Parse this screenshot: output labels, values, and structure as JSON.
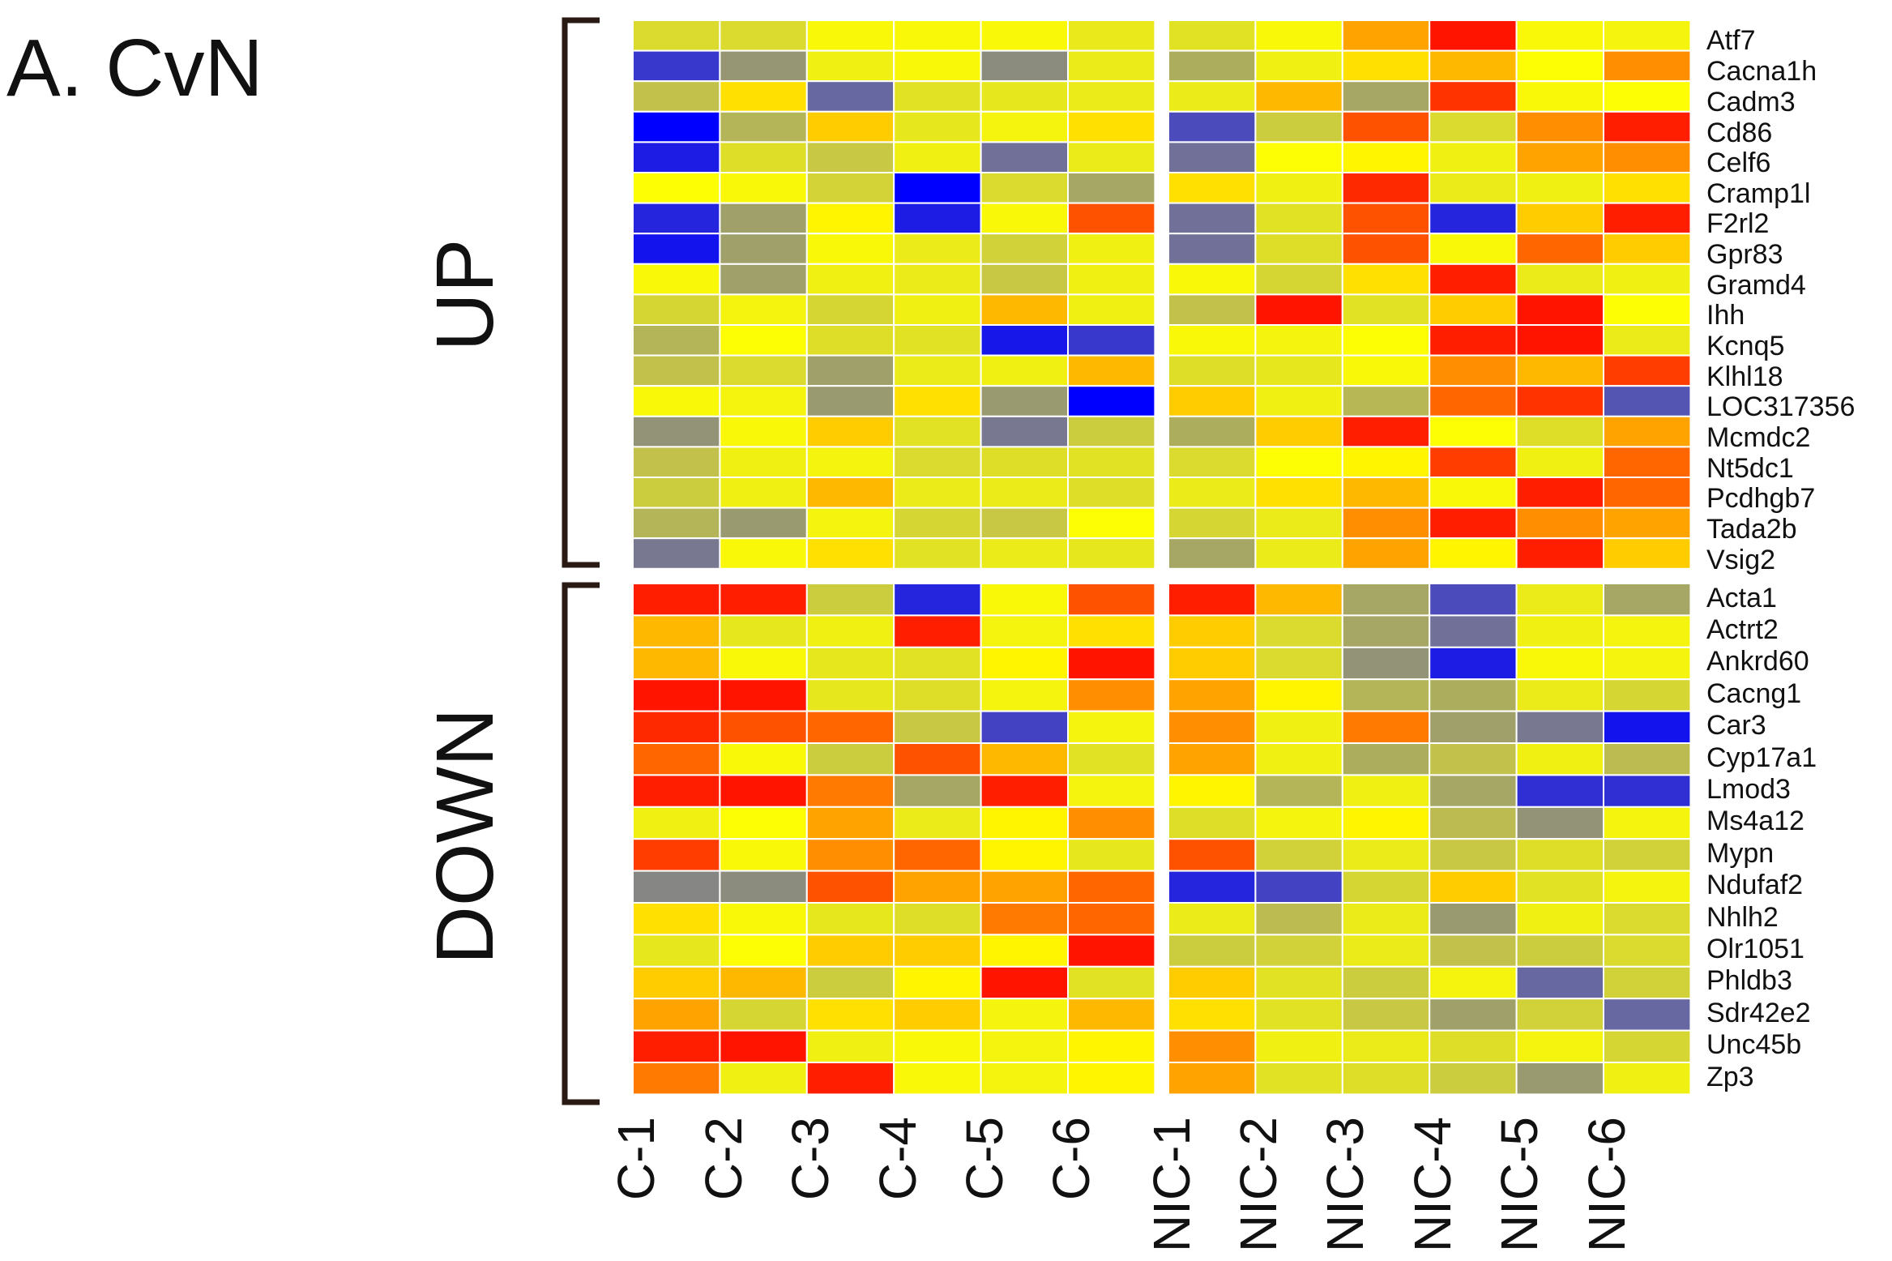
{
  "panel_label": "A. CvN",
  "chart_data": {
    "type": "heatmap",
    "title": "A. CvN",
    "color_scale": {
      "low": "#0000ff",
      "mid_low": "#757594",
      "mid": "#c8c845",
      "mid_high": "#ffff00",
      "high": "#ff0000",
      "range": [
        0,
        1
      ]
    },
    "groups": [
      {
        "name": "UP",
        "genes": [
          "Atf7",
          "Cacna1h",
          "Cadm3",
          "Cd86",
          "Celf6",
          "Cramp1l",
          "F2rl2",
          "Gpr83",
          "Gramd4",
          "Ihh",
          "Kcnq5",
          "Klhl18",
          "LOC317356",
          "Mcmdc2",
          "Nt5dc1",
          "Pcdhgb7",
          "Tada2b",
          "Vsig2"
        ]
      },
      {
        "name": "DOWN",
        "genes": [
          "Acta1",
          "Actrt2",
          "Ankrd60",
          "Cacng1",
          "Car3",
          "Cyp17a1",
          "Lmod3",
          "Ms4a12",
          "Mypn",
          "Ndufaf2",
          "Nhlh2",
          "Olr1051",
          "Phldb3",
          "Sdr42e2",
          "Unc45b",
          "Zp3"
        ]
      }
    ],
    "sample_groups": [
      {
        "name": "C",
        "samples": [
          "C-1",
          "C-2",
          "C-3",
          "C-4",
          "C-5",
          "C-6"
        ]
      },
      {
        "name": "NIC",
        "samples": [
          "NIC-1",
          "NIC-2",
          "NIC-3",
          "NIC-4",
          "NIC-5",
          "NIC-6"
        ]
      }
    ],
    "values": [
      [
        0.58,
        0.58,
        0.72,
        0.72,
        0.72,
        0.65,
        0.62,
        0.72,
        0.84,
        0.98,
        0.72,
        0.7
      ],
      [
        0.12,
        0.35,
        0.68,
        0.72,
        0.32,
        0.66,
        0.42,
        0.68,
        0.78,
        0.82,
        0.74,
        0.86
      ],
      [
        0.48,
        0.78,
        0.22,
        0.62,
        0.64,
        0.66,
        0.66,
        0.82,
        0.4,
        0.95,
        0.72,
        0.74
      ],
      [
        0.0,
        0.44,
        0.8,
        0.64,
        0.7,
        0.78,
        0.16,
        0.52,
        0.92,
        0.58,
        0.86,
        0.97
      ],
      [
        0.06,
        0.6,
        0.5,
        0.68,
        0.24,
        0.66,
        0.24,
        0.74,
        0.76,
        0.68,
        0.84,
        0.86
      ],
      [
        0.74,
        0.72,
        0.55,
        0.0,
        0.58,
        0.4,
        0.78,
        0.68,
        0.96,
        0.66,
        0.68,
        0.78
      ],
      [
        0.08,
        0.38,
        0.76,
        0.06,
        0.72,
        0.92,
        0.24,
        0.62,
        0.92,
        0.08,
        0.8,
        0.97
      ],
      [
        0.04,
        0.38,
        0.72,
        0.66,
        0.54,
        0.68,
        0.24,
        0.6,
        0.92,
        0.72,
        0.9,
        0.8
      ],
      [
        0.72,
        0.38,
        0.68,
        0.66,
        0.5,
        0.68,
        0.72,
        0.56,
        0.78,
        0.97,
        0.66,
        0.68
      ],
      [
        0.56,
        0.7,
        0.56,
        0.68,
        0.82,
        0.68,
        0.48,
        0.98,
        0.62,
        0.8,
        0.98,
        0.74
      ],
      [
        0.44,
        0.74,
        0.6,
        0.62,
        0.05,
        0.12,
        0.72,
        0.7,
        0.74,
        0.97,
        0.98,
        0.66
      ],
      [
        0.48,
        0.58,
        0.38,
        0.66,
        0.68,
        0.82,
        0.6,
        0.64,
        0.72,
        0.86,
        0.82,
        0.94
      ],
      [
        0.72,
        0.7,
        0.36,
        0.78,
        0.36,
        0.0,
        0.8,
        0.68,
        0.45,
        0.9,
        0.95,
        0.18
      ],
      [
        0.34,
        0.72,
        0.8,
        0.62,
        0.26,
        0.52,
        0.42,
        0.8,
        0.97,
        0.74,
        0.6,
        0.84
      ],
      [
        0.48,
        0.68,
        0.7,
        0.58,
        0.6,
        0.62,
        0.58,
        0.74,
        0.76,
        0.94,
        0.68,
        0.9
      ],
      [
        0.52,
        0.68,
        0.82,
        0.66,
        0.66,
        0.6,
        0.66,
        0.78,
        0.82,
        0.72,
        0.97,
        0.9
      ],
      [
        0.44,
        0.36,
        0.7,
        0.56,
        0.5,
        0.74,
        0.56,
        0.66,
        0.86,
        0.97,
        0.86,
        0.84
      ],
      [
        0.26,
        0.72,
        0.78,
        0.62,
        0.66,
        0.64,
        0.4,
        0.66,
        0.84,
        0.76,
        0.97,
        0.8
      ],
      [
        0.97,
        0.97,
        0.52,
        0.08,
        0.72,
        0.92,
        0.97,
        0.82,
        0.4,
        0.16,
        0.66,
        0.4
      ],
      [
        0.82,
        0.64,
        0.68,
        0.97,
        0.7,
        0.78,
        0.8,
        0.58,
        0.4,
        0.24,
        0.68,
        0.7
      ],
      [
        0.82,
        0.72,
        0.64,
        0.62,
        0.76,
        0.98,
        0.8,
        0.58,
        0.34,
        0.06,
        0.72,
        0.7
      ],
      [
        0.98,
        0.98,
        0.64,
        0.6,
        0.7,
        0.86,
        0.84,
        0.76,
        0.44,
        0.42,
        0.66,
        0.56
      ],
      [
        0.96,
        0.92,
        0.9,
        0.5,
        0.14,
        0.7,
        0.86,
        0.68,
        0.88,
        0.38,
        0.26,
        0.04
      ],
      [
        0.9,
        0.72,
        0.52,
        0.92,
        0.82,
        0.62,
        0.84,
        0.68,
        0.42,
        0.48,
        0.68,
        0.46
      ],
      [
        0.97,
        0.98,
        0.88,
        0.4,
        0.97,
        0.7,
        0.76,
        0.44,
        0.68,
        0.4,
        0.1,
        0.1
      ],
      [
        0.68,
        0.74,
        0.84,
        0.66,
        0.76,
        0.86,
        0.6,
        0.7,
        0.76,
        0.46,
        0.34,
        0.7
      ],
      [
        0.94,
        0.72,
        0.86,
        0.9,
        0.76,
        0.64,
        0.92,
        0.54,
        0.66,
        0.5,
        0.6,
        0.54
      ],
      [
        0.3,
        0.32,
        0.92,
        0.84,
        0.84,
        0.9,
        0.08,
        0.14,
        0.56,
        0.8,
        0.62,
        0.7
      ],
      [
        0.78,
        0.72,
        0.64,
        0.6,
        0.88,
        0.9,
        0.66,
        0.46,
        0.66,
        0.36,
        0.68,
        0.58
      ],
      [
        0.64,
        0.74,
        0.8,
        0.8,
        0.76,
        0.98,
        0.52,
        0.54,
        0.66,
        0.48,
        0.52,
        0.58
      ],
      [
        0.8,
        0.82,
        0.52,
        0.76,
        0.98,
        0.62,
        0.8,
        0.62,
        0.52,
        0.7,
        0.22,
        0.54
      ],
      [
        0.84,
        0.56,
        0.78,
        0.8,
        0.7,
        0.82,
        0.78,
        0.62,
        0.5,
        0.38,
        0.54,
        0.22
      ],
      [
        0.97,
        0.98,
        0.68,
        0.72,
        0.7,
        0.76,
        0.86,
        0.68,
        0.66,
        0.6,
        0.7,
        0.56
      ],
      [
        0.88,
        0.68,
        0.97,
        0.72,
        0.7,
        0.76,
        0.84,
        0.62,
        0.6,
        0.52,
        0.36,
        0.68
      ]
    ]
  }
}
